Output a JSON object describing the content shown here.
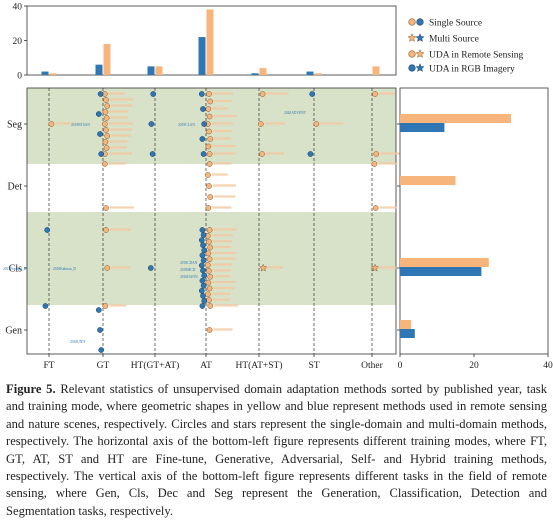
{
  "chart_data": [
    {
      "id": "top",
      "type": "bar",
      "categories": [
        "FT",
        "GT",
        "HT(GT+AT)",
        "AT",
        "HT(AT+ST)",
        "ST",
        "Other"
      ],
      "series": [
        {
          "name": "UDA in Remote Sensing",
          "color": "#f7b57c",
          "values": [
            1,
            18,
            5,
            38,
            4,
            1,
            5
          ]
        },
        {
          "name": "UDA in RGB Imagery",
          "color": "#2f77b4",
          "values": [
            2,
            6,
            5,
            22,
            1,
            2,
            0
          ]
        }
      ],
      "yticks": [
        "0",
        "20",
        "40"
      ],
      "ylim": [
        0,
        40
      ]
    },
    {
      "id": "right",
      "type": "bar",
      "orientation": "horizontal",
      "categories": [
        "Seg",
        "Det",
        "Cls",
        "Gen"
      ],
      "series": [
        {
          "name": "UDA in Remote Sensing",
          "color": "#f7b57c",
          "values": [
            30,
            15,
            24,
            3
          ]
        },
        {
          "name": "UDA in RGB Imagery",
          "color": "#2f77b4",
          "values": [
            12,
            0,
            22,
            4
          ]
        }
      ],
      "xticks": [
        "0",
        "20",
        "40"
      ],
      "xlim": [
        0,
        40
      ]
    },
    {
      "id": "scatter",
      "type": "scatter",
      "x_categories": [
        "FT",
        "GT",
        "HT(GT+AT)",
        "AT",
        "HT(AT+ST)",
        "ST",
        "Other"
      ],
      "y_categories": [
        "Seg",
        "Det",
        "Cls",
        "Gen"
      ],
      "points": [
        {
          "x": "GT",
          "y": "Seg",
          "series": "UDA in Remote Sensing",
          "marker": "circle",
          "count": 11
        },
        {
          "x": "GT",
          "y": "Seg",
          "series": "UDA in RGB Imagery",
          "marker": "circle",
          "count": 4
        },
        {
          "x": "FT",
          "y": "Seg",
          "series": "UDA in Remote Sensing",
          "marker": "circle",
          "count": 1
        },
        {
          "x": "HT(GT+AT)",
          "y": "Seg",
          "series": "UDA in RGB Imagery",
          "marker": "circle",
          "count": 3
        },
        {
          "x": "AT",
          "y": "Seg",
          "series": "UDA in Remote Sensing",
          "marker": "circle",
          "count": 9
        },
        {
          "x": "AT",
          "y": "Seg",
          "series": "UDA in RGB Imagery",
          "marker": "circle",
          "count": 5
        },
        {
          "x": "HT(AT+ST)",
          "y": "Seg",
          "series": "UDA in Remote Sensing",
          "marker": "circle",
          "count": 3
        },
        {
          "x": "ST",
          "y": "Seg",
          "series": "UDA in Remote Sensing",
          "marker": "circle",
          "count": 1
        },
        {
          "x": "ST",
          "y": "Seg",
          "series": "UDA in RGB Imagery",
          "marker": "circle",
          "count": 2
        },
        {
          "x": "Other",
          "y": "Seg",
          "series": "UDA in Remote Sensing",
          "marker": "circle",
          "count": 2
        },
        {
          "x": "GT",
          "y": "Det",
          "series": "UDA in Remote Sensing",
          "marker": "circle",
          "count": 2
        },
        {
          "x": "AT",
          "y": "Det",
          "series": "UDA in Remote Sensing",
          "marker": "circle",
          "count": 5
        },
        {
          "x": "Other",
          "y": "Det",
          "series": "UDA in Remote Sensing",
          "marker": "circle",
          "count": 2
        },
        {
          "x": "FT",
          "y": "Cls",
          "series": "UDA in RGB Imagery",
          "marker": "circle",
          "count": 2
        },
        {
          "x": "GT",
          "y": "Cls",
          "series": "UDA in Remote Sensing",
          "marker": "circle",
          "count": 3
        },
        {
          "x": "HT(GT+AT)",
          "y": "Cls",
          "series": "UDA in RGB Imagery",
          "marker": "circle",
          "count": 1
        },
        {
          "x": "AT",
          "y": "Cls",
          "series": "UDA in Remote Sensing",
          "marker": "circle",
          "count": 14
        },
        {
          "x": "AT",
          "y": "Cls",
          "series": "UDA in RGB Imagery",
          "marker": "circle",
          "count": 16
        },
        {
          "x": "HT(AT+ST)",
          "y": "Cls",
          "series": "UDA in Remote Sensing",
          "marker": "star",
          "count": 1
        },
        {
          "x": "Other",
          "y": "Cls",
          "series": "UDA in Remote Sensing",
          "marker": "star",
          "count": 1
        },
        {
          "x": "GT",
          "y": "Gen",
          "series": "UDA in RGB Imagery",
          "marker": "circle",
          "count": 3
        },
        {
          "x": "AT",
          "y": "Gen",
          "series": "UDA in Remote Sensing",
          "marker": "circle",
          "count": 1
        }
      ],
      "point_labels": [
        {
          "x": "FT",
          "y": "Cls",
          "text": "2017Pradhan_D",
          "series": "UDA in RGB Imagery"
        },
        {
          "x": "GT",
          "y": "Cls",
          "text": "2018Kalman_D",
          "series": "UDA in RGB Imagery"
        },
        {
          "x": "GT",
          "y": "Seg",
          "text": "2019BTSAN",
          "series": "UDA in RGB Imagery"
        },
        {
          "x": "HT(GT+AT)",
          "y": "Seg",
          "text": "2019CLAN",
          "series": "UDA in RGB Imagery"
        },
        {
          "x": "ST",
          "y": "Seg",
          "text": "2020ADVENT",
          "series": "UDA in RGB Imagery"
        },
        {
          "x": "AT",
          "y": "Cls",
          "text": "2018CDAN",
          "series": "UDA in RGB Imagery"
        },
        {
          "x": "AT",
          "y": "Cls",
          "text": "2018MCD",
          "series": "UDA in RGB Imagery"
        },
        {
          "x": "AT",
          "y": "Cls",
          "text": "2016DANN",
          "series": "UDA in RGB Imagery"
        },
        {
          "x": "GT",
          "y": "Gen",
          "text": "2018UNIT",
          "series": "UDA in RGB Imagery"
        }
      ]
    }
  ],
  "legend": [
    {
      "label": "Single Source",
      "marker": "circle"
    },
    {
      "label": "Multi Source",
      "marker": "star"
    },
    {
      "label": "UDA in Remote Sensing",
      "marker": "pair"
    },
    {
      "label": "UDA in RGB Imagery",
      "marker": "pair"
    }
  ],
  "colors": {
    "remote": "#f7b57c",
    "rgb": "#2f77b4",
    "band": "#d8e2c9",
    "edge_remote": "#8a5a2a",
    "edge_rgb": "#1b3f63"
  },
  "caption": {
    "label": "Figure 5.",
    "text": "Relevant statistics of unsupervised domain adaptation methods sorted by published year, task and training mode, where geometric shapes in yellow and blue represent methods used in remote sensing and nature scenes, respectively. Circles and stars represent the single-domain and multi-domain methods, respectively. The horizontal axis of the bottom-left figure represents different training modes, where FT, GT, AT, ST and HT are Fine-tune, Generative, Adversarial, Self- and Hybrid training methods, respectively. The vertical axis of the bottom-left figure represents different tasks in the field of remote sensing, where Gen, Cls, Dec and Seg represent the Generation, Classification, Detection and Segmentation tasks, respectively."
  }
}
